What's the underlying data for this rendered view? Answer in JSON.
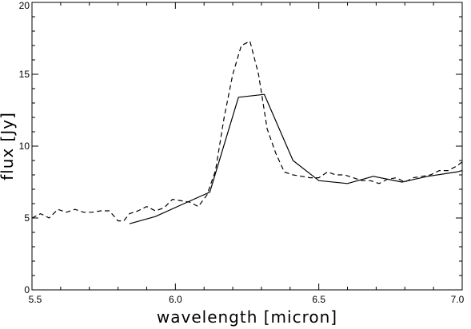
{
  "chart_data": {
    "type": "line",
    "title": "",
    "xlabel": "wavelength [micron]",
    "ylabel": "flux [Jy]",
    "xlim": [
      5.5,
      7.0
    ],
    "ylim": [
      0,
      20
    ],
    "grid": false,
    "x_ticks": [
      5.5,
      6.0,
      6.5,
      7.0
    ],
    "x_tick_labels": [
      "5.5",
      "6.0",
      "6.5",
      "7.0"
    ],
    "y_ticks": [
      0,
      5,
      10,
      15,
      20
    ],
    "y_tick_labels": [
      "0",
      "5",
      "10",
      "15",
      "20"
    ],
    "series": [
      {
        "style": "solid",
        "color": "#000000",
        "x": [
          5.84,
          5.93,
          6.03,
          6.12,
          6.22,
          6.31,
          6.41,
          6.5,
          6.6,
          6.69,
          6.79,
          6.88,
          6.98,
          7.0
        ],
        "y": [
          4.6,
          5.1,
          6.0,
          6.8,
          13.4,
          13.6,
          9.0,
          7.6,
          7.4,
          7.9,
          7.5,
          7.9,
          8.2,
          8.3
        ]
      },
      {
        "style": "dashed",
        "color": "#000000",
        "x": [
          5.5,
          5.53,
          5.56,
          5.59,
          5.62,
          5.65,
          5.68,
          5.71,
          5.74,
          5.77,
          5.8,
          5.82,
          5.84,
          5.87,
          5.9,
          5.93,
          5.96,
          5.99,
          6.02,
          6.05,
          6.08,
          6.11,
          6.14,
          6.17,
          6.2,
          6.23,
          6.26,
          6.29,
          6.32,
          6.35,
          6.38,
          6.41,
          6.44,
          6.47,
          6.5,
          6.53,
          6.56,
          6.59,
          6.62,
          6.65,
          6.68,
          6.71,
          6.74,
          6.77,
          6.8,
          6.83,
          6.86,
          6.89,
          6.92,
          6.95,
          6.98,
          7.0
        ],
        "y": [
          5.0,
          5.3,
          5.0,
          5.6,
          5.4,
          5.6,
          5.4,
          5.4,
          5.5,
          5.5,
          4.8,
          4.8,
          5.3,
          5.5,
          5.8,
          5.5,
          5.7,
          6.3,
          6.2,
          6.1,
          5.8,
          6.6,
          8.3,
          12.0,
          15.0,
          17.0,
          17.3,
          15.0,
          11.2,
          9.5,
          8.2,
          8.0,
          7.9,
          7.8,
          7.8,
          8.2,
          8.0,
          8.0,
          7.8,
          7.6,
          7.6,
          7.4,
          7.7,
          7.8,
          7.5,
          7.8,
          7.9,
          8.0,
          8.3,
          8.3,
          8.6,
          8.9
        ]
      }
    ]
  }
}
